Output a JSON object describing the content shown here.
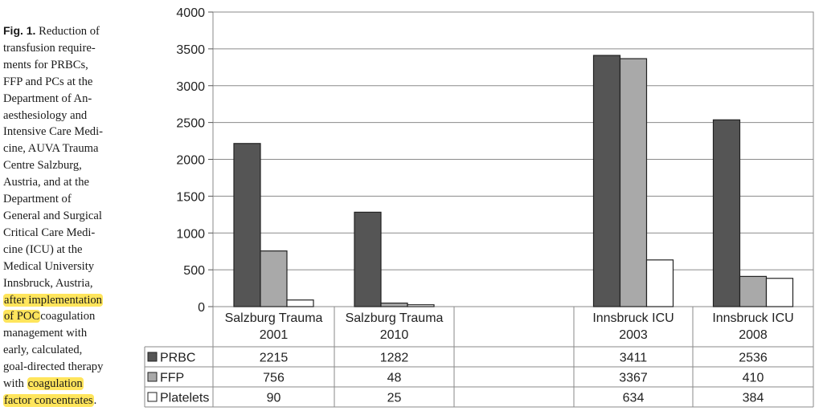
{
  "caption": {
    "label": "Fig. 1.",
    "first_line_rest": " Reduction of",
    "lines": [
      "transfusion require-",
      "ments for PRBCs,",
      "FFP and PCs at the",
      "Department of An-",
      "aesthesiology and",
      "Intensive Care Medi-",
      "cine, AUVA Trauma",
      "Centre Salzburg,",
      "Austria, and at the",
      "Department of",
      "General and Surgical",
      "Critical Care Medi-",
      "cine (ICU) at the",
      "Medical University",
      "Innsbruck, Austria,"
    ],
    "hl1": "after implementation",
    "hl2": "of POC",
    "hl2_rest": "coagulation",
    "lines2": [
      "management with",
      "early, calculated,",
      "goal-directed therapy"
    ],
    "with": "with ",
    "hl3": "coagulation",
    "hl4": "factor concentrates",
    "hl4_rest": "."
  },
  "chart_data": {
    "type": "bar",
    "categories": [
      [
        "Salzburg Trauma",
        "2001"
      ],
      [
        "Salzburg Trauma",
        "2010"
      ],
      [
        "",
        ""
      ],
      [
        "Innsbruck ICU",
        "2003"
      ],
      [
        "Innsbruck ICU",
        "2008"
      ]
    ],
    "series": [
      {
        "name": "PRBC",
        "values": [
          2215,
          1282,
          null,
          3411,
          2536
        ]
      },
      {
        "name": "FFP",
        "values": [
          756,
          48,
          null,
          3367,
          410
        ]
      },
      {
        "name": "Platelets",
        "values": [
          90,
          25,
          null,
          634,
          384
        ]
      }
    ],
    "ylim": [
      0,
      4000
    ],
    "yticks": [
      0,
      500,
      1000,
      1500,
      2000,
      2500,
      3000,
      3500,
      4000
    ],
    "grid": true,
    "legend": "data-table",
    "colors": [
      "#555555",
      "#a9a9a9",
      "#ffffff"
    ]
  }
}
